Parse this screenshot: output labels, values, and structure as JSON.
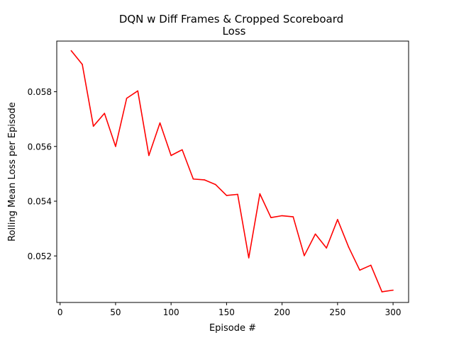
{
  "chart_data": {
    "type": "line",
    "title_line1": "DQN w Diff Frames & Cropped Scoreboard",
    "title_line2": "Loss",
    "xlabel": "Episode #",
    "ylabel": "Rolling Mean Loss per Episode",
    "xlim": [
      -3,
      314
    ],
    "ylim": [
      0.0503,
      0.05985
    ],
    "xticks": [
      0,
      50,
      100,
      150,
      200,
      250,
      300
    ],
    "xtick_labels": [
      "0",
      "50",
      "100",
      "150",
      "200",
      "250",
      "300"
    ],
    "yticks": [
      0.052,
      0.054,
      0.056,
      0.058
    ],
    "ytick_labels": [
      "0.052",
      "0.054",
      "0.056",
      "0.058"
    ],
    "grid": false,
    "legend": null,
    "series": [
      {
        "color": "#ff0000",
        "x": [
          10,
          20,
          30,
          40,
          50,
          60,
          70,
          80,
          90,
          100,
          110,
          120,
          130,
          140,
          150,
          160,
          170,
          180,
          190,
          200,
          210,
          220,
          230,
          240,
          250,
          260,
          270,
          280,
          290,
          300
        ],
        "y": [
          0.0595,
          0.059,
          0.05674,
          0.05721,
          0.056,
          0.05776,
          0.05803,
          0.05567,
          0.05686,
          0.05567,
          0.05588,
          0.05481,
          0.05478,
          0.05461,
          0.05421,
          0.05425,
          0.05193,
          0.05427,
          0.0534,
          0.05347,
          0.05343,
          0.05201,
          0.0528,
          0.05229,
          0.05333,
          0.05232,
          0.05148,
          0.05166,
          0.05069,
          0.05075
        ]
      }
    ]
  }
}
